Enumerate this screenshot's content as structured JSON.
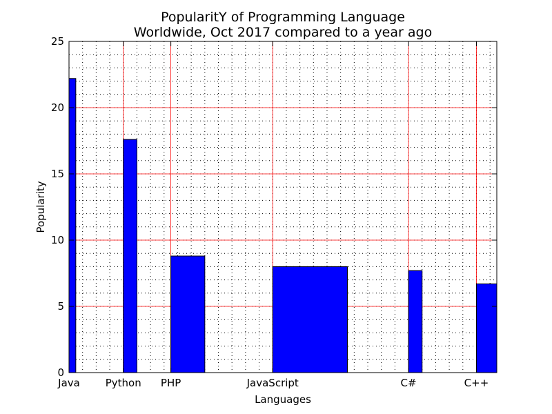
{
  "chart_data": {
    "type": "bar",
    "title_lines": [
      "PopularitY of Programming Language",
      "Worldwide, Oct 2017 compared to a year ago"
    ],
    "xlabel": "Languages",
    "ylabel": "Popularity",
    "ylim": [
      0,
      25
    ],
    "y_ticks": [
      "0",
      "5",
      "10",
      "15",
      "20",
      "25"
    ],
    "x_axis_kind": "numeric positions, tick labels at bar left edges",
    "categories": [
      "Java",
      "Python",
      "PHP",
      "JavaScript",
      "C#",
      "C++"
    ],
    "bar_positions": [
      0,
      4,
      7.5,
      15,
      25,
      30
    ],
    "bar_widths": [
      0.5,
      1,
      2.5,
      5.5,
      1,
      1.5
    ],
    "xlim": [
      0,
      31.5
    ],
    "values": [
      22.2,
      17.6,
      8.8,
      8.0,
      7.7,
      6.7
    ],
    "bar_color": "#0000ff",
    "bar_edge_color": "#000000",
    "major_grid": true,
    "major_grid_color": "#ff0000",
    "minor_grid": true,
    "minor_grid_color": "#000000",
    "legend": "none"
  }
}
